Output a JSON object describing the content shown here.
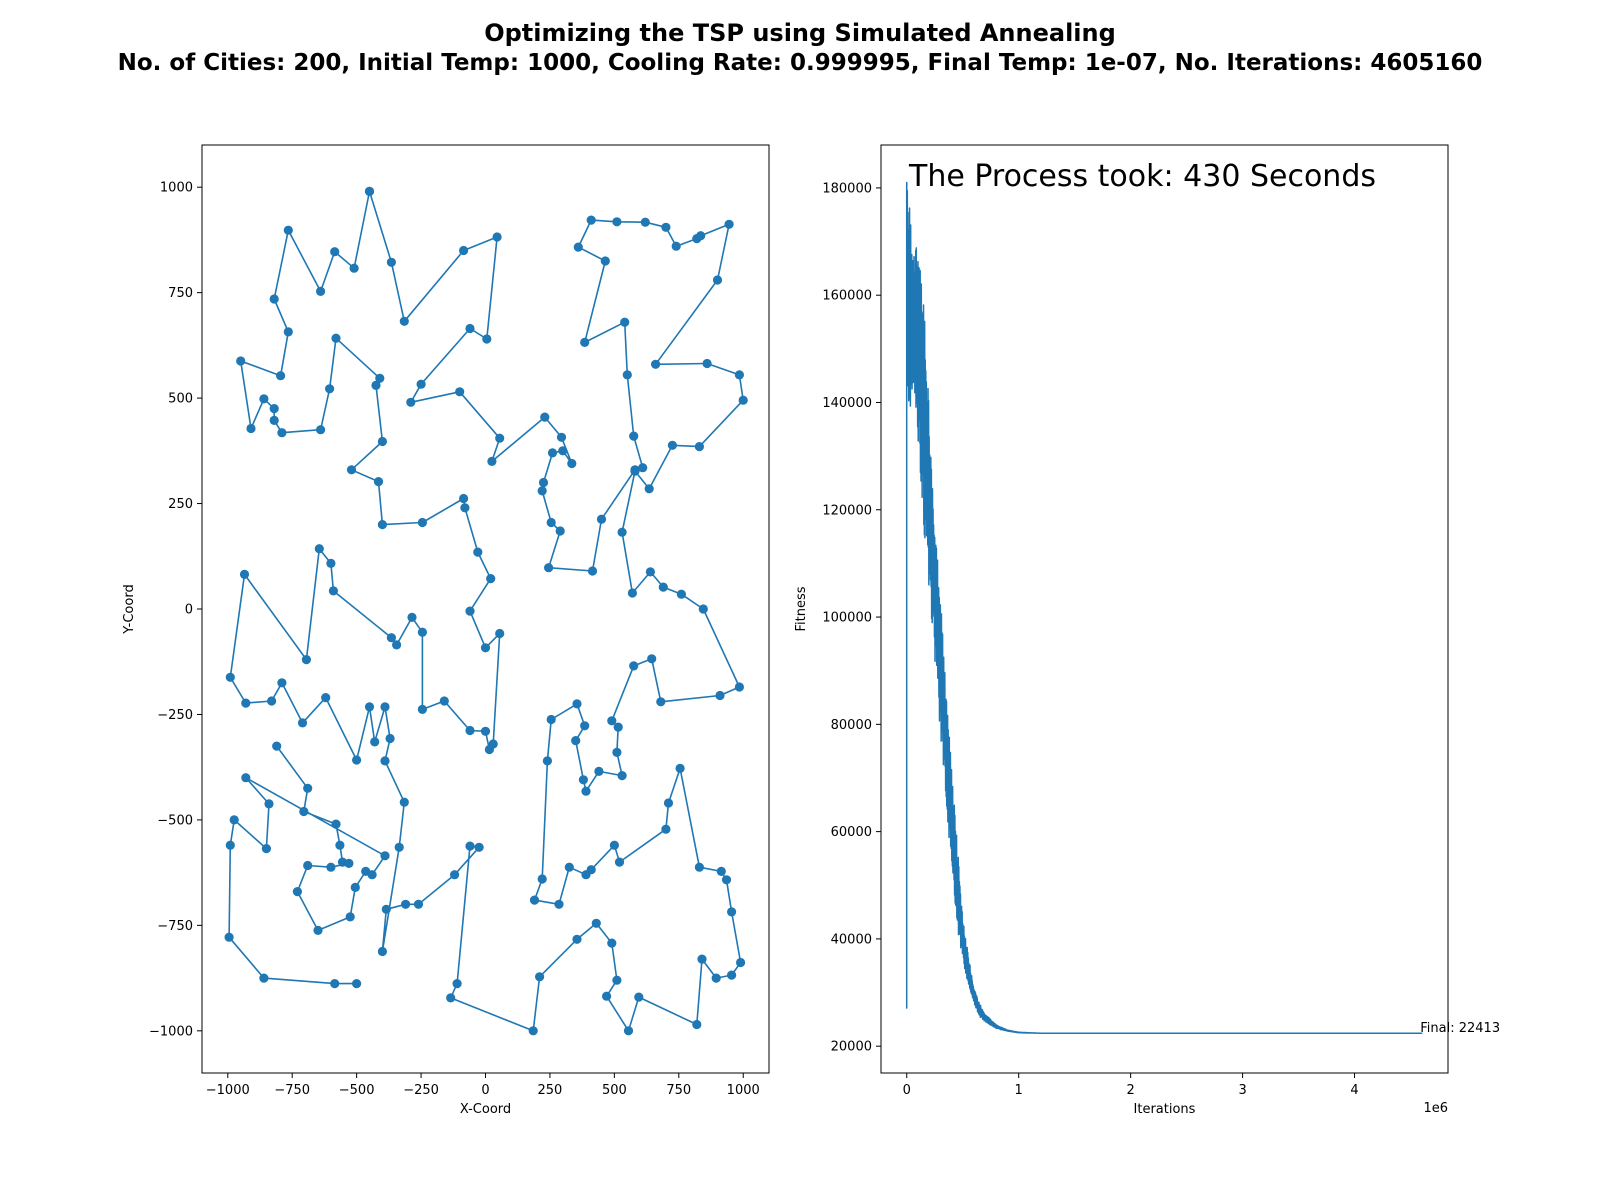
{
  "figure": {
    "title_line1": "Optimizing the TSP using Simulated Annealing",
    "title_line2": "No. of Cities: 200, Initial Temp: 1000, Cooling Rate: 0.999995, Final Temp: 1e-07, No. Iterations: 4605160"
  },
  "colors": {
    "series": "#1f77b4",
    "axes": "#000000",
    "background": "#ffffff"
  },
  "chart_data": [
    {
      "type": "line",
      "markers": "circle",
      "xlabel": "X-Coord",
      "ylabel": "Y-Coord",
      "xlim": [
        -1100,
        1100
      ],
      "ylim": [
        -1100,
        1100
      ],
      "xticks": [
        -1000,
        -750,
        -500,
        -250,
        0,
        250,
        500,
        750,
        1000
      ],
      "yticks": [
        -1000,
        -750,
        -500,
        -250,
        0,
        250,
        500,
        750,
        1000
      ],
      "xtick_labels": [
        "−1000",
        "−750",
        "−500",
        "−250",
        "0",
        "250",
        "500",
        "750",
        "1000"
      ],
      "ytick_labels": [
        "−1000",
        "−750",
        "−500",
        "−250",
        "0",
        "250",
        "500",
        "750",
        "1000"
      ],
      "grid": false,
      "route": [
        [
          -450,
          990
        ],
        [
          -365,
          822
        ],
        [
          -315,
          682
        ],
        [
          -85,
          850
        ],
        [
          45,
          882
        ],
        [
          5,
          640
        ],
        [
          -60,
          665
        ],
        [
          -250,
          533
        ],
        [
          -290,
          490
        ],
        [
          -100,
          515
        ],
        [
          55,
          405
        ],
        [
          25,
          350
        ],
        [
          230,
          455
        ],
        [
          295,
          407
        ],
        [
          335,
          345
        ],
        [
          300,
          375
        ],
        [
          260,
          370
        ],
        [
          225,
          300
        ],
        [
          220,
          280
        ],
        [
          255,
          205
        ],
        [
          290,
          185
        ],
        [
          245,
          98
        ],
        [
          415,
          90
        ],
        [
          450,
          213
        ],
        [
          580,
          330
        ],
        [
          610,
          335
        ],
        [
          575,
          410
        ],
        [
          550,
          555
        ],
        [
          540,
          680
        ],
        [
          385,
          632
        ],
        [
          465,
          825
        ],
        [
          360,
          858
        ],
        [
          410,
          922
        ],
        [
          510,
          918
        ],
        [
          620,
          917
        ],
        [
          700,
          905
        ],
        [
          740,
          860
        ],
        [
          820,
          878
        ],
        [
          835,
          885
        ],
        [
          945,
          912
        ],
        [
          900,
          780
        ],
        [
          660,
          580
        ],
        [
          860,
          582
        ],
        [
          985,
          555
        ],
        [
          1000,
          495
        ],
        [
          830,
          385
        ],
        [
          725,
          388
        ],
        [
          635,
          285
        ],
        [
          580,
          327
        ],
        [
          530,
          182
        ],
        [
          570,
          38
        ],
        [
          640,
          88
        ],
        [
          690,
          52
        ],
        [
          760,
          35
        ],
        [
          845,
          0
        ],
        [
          985,
          -185
        ],
        [
          910,
          -205
        ],
        [
          680,
          -220
        ],
        [
          645,
          -118
        ],
        [
          575,
          -135
        ],
        [
          490,
          -265
        ],
        [
          515,
          -280
        ],
        [
          510,
          -340
        ],
        [
          530,
          -395
        ],
        [
          440,
          -385
        ],
        [
          390,
          -432
        ],
        [
          380,
          -405
        ],
        [
          350,
          -312
        ],
        [
          385,
          -277
        ],
        [
          355,
          -225
        ],
        [
          255,
          -262
        ],
        [
          240,
          -360
        ],
        [
          220,
          -640
        ],
        [
          190,
          -690
        ],
        [
          285,
          -700
        ],
        [
          325,
          -612
        ],
        [
          390,
          -630
        ],
        [
          410,
          -618
        ],
        [
          500,
          -560
        ],
        [
          520,
          -600
        ],
        [
          700,
          -522
        ],
        [
          710,
          -460
        ],
        [
          755,
          -378
        ],
        [
          830,
          -612
        ],
        [
          915,
          -622
        ],
        [
          935,
          -642
        ],
        [
          955,
          -718
        ],
        [
          990,
          -838
        ],
        [
          955,
          -868
        ],
        [
          895,
          -875
        ],
        [
          840,
          -830
        ],
        [
          820,
          -985
        ],
        [
          595,
          -920
        ],
        [
          555,
          -1000
        ],
        [
          470,
          -918
        ],
        [
          510,
          -880
        ],
        [
          490,
          -792
        ],
        [
          430,
          -745
        ],
        [
          355,
          -783
        ],
        [
          210,
          -872
        ],
        [
          185,
          -1000
        ],
        [
          -135,
          -922
        ],
        [
          -110,
          -888
        ],
        [
          -60,
          -562
        ],
        [
          -25,
          -565
        ],
        [
          -120,
          -630
        ],
        [
          -260,
          -700
        ],
        [
          -310,
          -700
        ],
        [
          -385,
          -712
        ],
        [
          -400,
          -812
        ],
        [
          -335,
          -565
        ],
        [
          -315,
          -458
        ],
        [
          -390,
          -360
        ],
        [
          -370,
          -307
        ],
        [
          -390,
          -232
        ],
        [
          -430,
          -315
        ],
        [
          -450,
          -232
        ],
        [
          -500,
          -358
        ],
        [
          -620,
          -210
        ],
        [
          -710,
          -270
        ],
        [
          -790,
          -175
        ],
        [
          -830,
          -218
        ],
        [
          -930,
          -223
        ],
        [
          -990,
          -162
        ],
        [
          -935,
          82
        ],
        [
          -695,
          -120
        ],
        [
          -645,
          143
        ],
        [
          -600,
          108
        ],
        [
          -590,
          43
        ],
        [
          -365,
          -68
        ],
        [
          -345,
          -85
        ],
        [
          -285,
          -20
        ],
        [
          -245,
          -55
        ],
        [
          -245,
          -238
        ],
        [
          -160,
          -218
        ],
        [
          -60,
          -288
        ],
        [
          0,
          -290
        ],
        [
          15,
          -333
        ],
        [
          30,
          -320
        ],
        [
          55,
          -58
        ],
        [
          0,
          -92
        ],
        [
          -60,
          -5
        ],
        [
          20,
          72
        ],
        [
          -30,
          135
        ],
        [
          -80,
          240
        ],
        [
          -85,
          262
        ],
        [
          -245,
          205
        ],
        [
          -400,
          200
        ],
        [
          -415,
          302
        ],
        [
          -520,
          330
        ],
        [
          -400,
          397
        ],
        [
          -425,
          530
        ],
        [
          -410,
          547
        ],
        [
          -580,
          642
        ],
        [
          -605,
          522
        ],
        [
          -640,
          425
        ],
        [
          -790,
          418
        ],
        [
          -820,
          447
        ],
        [
          -820,
          475
        ],
        [
          -860,
          498
        ],
        [
          -910,
          428
        ],
        [
          -950,
          588
        ],
        [
          -795,
          553
        ],
        [
          -765,
          657
        ],
        [
          -820,
          735
        ],
        [
          -765,
          898
        ],
        [
          -640,
          753
        ],
        [
          -585,
          847
        ],
        [
          -510,
          808
        ],
        [
          -450,
          990
        ]
      ],
      "route_tail": [
        [
          -810,
          -325
        ],
        [
          -690,
          -425
        ],
        [
          -705,
          -480
        ],
        [
          -580,
          -510
        ],
        [
          -565,
          -560
        ],
        [
          -555,
          -600
        ],
        [
          -530,
          -603
        ],
        [
          -600,
          -612
        ],
        [
          -690,
          -608
        ],
        [
          -730,
          -670
        ],
        [
          -650,
          -762
        ],
        [
          -525,
          -730
        ],
        [
          -505,
          -660
        ],
        [
          -465,
          -622
        ],
        [
          -440,
          -630
        ],
        [
          -390,
          -585
        ],
        [
          -930,
          -400
        ],
        [
          -840,
          -462
        ],
        [
          -850,
          -568
        ],
        [
          -975,
          -500
        ],
        [
          -990,
          -560
        ],
        [
          -995,
          -778
        ],
        [
          -860,
          -875
        ],
        [
          -585,
          -888
        ],
        [
          -500,
          -888
        ]
      ]
    },
    {
      "type": "line",
      "xlabel": "Iterations",
      "ylabel": "Fitness",
      "x_multiplier": "1e6",
      "xlim": [
        -230000,
        4835000
      ],
      "ylim": [
        15000,
        188000
      ],
      "xticks": [
        0,
        1000000,
        2000000,
        3000000,
        4000000
      ],
      "xtick_labels": [
        "0",
        "1",
        "2",
        "3",
        "4"
      ],
      "yticks": [
        20000,
        40000,
        60000,
        80000,
        100000,
        120000,
        140000,
        160000,
        180000
      ],
      "ytick_labels": [
        "20000",
        "40000",
        "60000",
        "80000",
        "100000",
        "120000",
        "140000",
        "160000",
        "180000"
      ],
      "grid": false,
      "annotation_top": "The Process took: 430 Seconds",
      "annotation_final": "Final: 22413",
      "initial_fitness": 27000,
      "peak_fitness": 181000,
      "final_fitness": 22413,
      "total_iterations": 4605160,
      "upper_envelope": [
        [
          0,
          181000
        ],
        [
          50000,
          172000
        ],
        [
          100000,
          170000
        ],
        [
          150000,
          160000
        ],
        [
          200000,
          140000
        ],
        [
          250000,
          120000
        ],
        [
          300000,
          104000
        ],
        [
          350000,
          87000
        ],
        [
          400000,
          72000
        ],
        [
          450000,
          58000
        ],
        [
          500000,
          44000
        ],
        [
          550000,
          37000
        ],
        [
          600000,
          31000
        ],
        [
          650000,
          28000
        ],
        [
          700000,
          26000
        ],
        [
          800000,
          24000
        ],
        [
          900000,
          23000
        ],
        [
          1000000,
          22600
        ],
        [
          1200000,
          22413
        ]
      ],
      "lower_envelope": [
        [
          0,
          138000
        ],
        [
          50000,
          140000
        ],
        [
          100000,
          133000
        ],
        [
          150000,
          117000
        ],
        [
          200000,
          105000
        ],
        [
          250000,
          92000
        ],
        [
          300000,
          78000
        ],
        [
          350000,
          66000
        ],
        [
          400000,
          53000
        ],
        [
          450000,
          42000
        ],
        [
          500000,
          36000
        ],
        [
          550000,
          31000
        ],
        [
          600000,
          28000
        ],
        [
          650000,
          25500
        ],
        [
          700000,
          24500
        ],
        [
          800000,
          23300
        ],
        [
          900000,
          22800
        ],
        [
          1000000,
          22500
        ],
        [
          1200000,
          22413
        ]
      ]
    }
  ]
}
